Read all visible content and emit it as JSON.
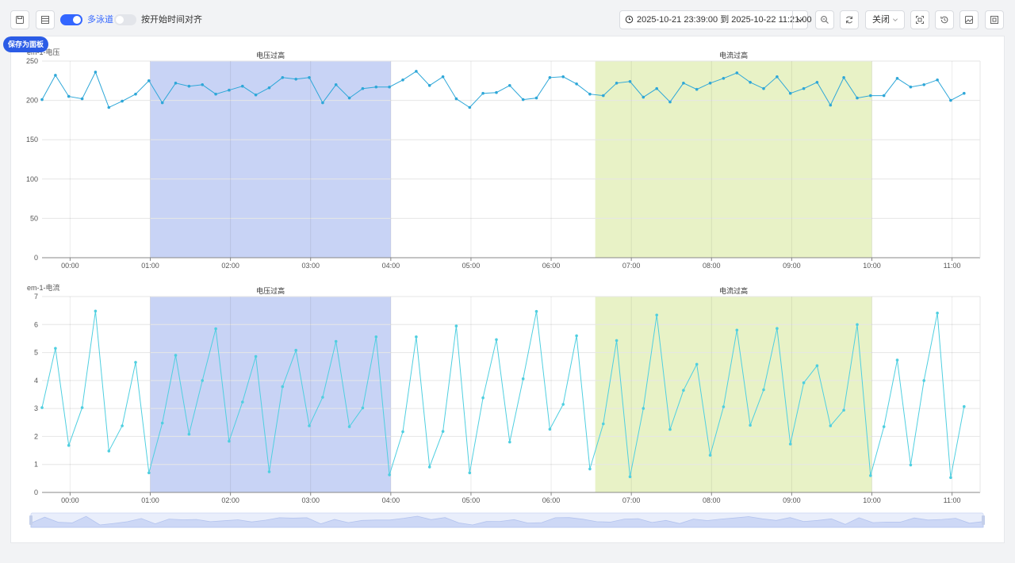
{
  "toolbar": {
    "save_tooltip": "保存为面板",
    "multi_lane_label": "多泳道",
    "multi_lane_on": true,
    "align_start_label": "按开始时间对齐",
    "align_start_on": false,
    "date_range": "2025-10-21 23:39:00 到 2025-10-22 11:21:00",
    "refresh_select": "关闭"
  },
  "colors": {
    "accent": "#3366ff",
    "line": "#2ea7d8",
    "line2": "#4fcfe0",
    "band_voltage": "#c8d3f5",
    "band_current": "#e8f2c6"
  },
  "chart_data": [
    {
      "type": "line",
      "title": "em-1-电压",
      "x_ticks": [
        "00:00",
        "01:00",
        "02:00",
        "03:00",
        "04:00",
        "05:00",
        "06:00",
        "07:00",
        "08:00",
        "09:00",
        "10:00",
        "11:00"
      ],
      "ylim": [
        0,
        250
      ],
      "y_ticks": [
        0,
        50,
        100,
        150,
        200,
        250
      ],
      "grid": true,
      "time_start": "23:39",
      "time_step_min": 10,
      "annotations": [
        {
          "label": "电压过高",
          "from": "01:00",
          "to": "04:00",
          "color": "#c8d3f5"
        },
        {
          "label": "电流过高",
          "from": "06:33",
          "to": "10:00",
          "color": "#e8f2c6"
        }
      ],
      "series": [
        {
          "values": [
            201,
            232,
            205,
            202,
            236,
            191,
            199,
            208,
            225,
            197,
            222,
            218,
            220,
            208,
            213,
            218,
            207,
            216,
            229,
            227,
            229,
            197,
            220,
            203,
            215,
            217,
            217,
            226,
            237,
            219,
            230,
            202,
            191,
            209,
            210,
            219,
            201,
            203,
            229,
            230,
            221,
            208,
            206,
            222,
            224,
            204,
            215,
            198,
            222,
            214,
            222,
            228,
            235,
            223,
            215,
            230,
            209,
            215,
            223,
            194,
            229,
            203,
            206,
            206,
            228,
            217,
            220,
            226,
            200,
            209
          ]
        }
      ]
    },
    {
      "type": "line",
      "title": "em-1-电流",
      "x_ticks": [
        "00:00",
        "01:00",
        "02:00",
        "03:00",
        "04:00",
        "05:00",
        "06:00",
        "07:00",
        "08:00",
        "09:00",
        "10:00",
        "11:00"
      ],
      "ylim": [
        0,
        7
      ],
      "y_ticks": [
        0,
        1,
        2,
        3,
        4,
        5,
        6,
        7
      ],
      "grid": true,
      "time_start": "23:39",
      "time_step_min": 10,
      "annotations": [
        {
          "label": "电压过高",
          "from": "01:00",
          "to": "04:00",
          "color": "#c8d3f5"
        },
        {
          "label": "电流过高",
          "from": "06:33",
          "to": "10:00",
          "color": "#e8f2c6"
        }
      ],
      "series": [
        {
          "values": [
            3.03,
            5.15,
            1.68,
            3.03,
            6.48,
            1.48,
            2.38,
            4.65,
            0.7,
            2.48,
            4.9,
            2.08,
            4.0,
            5.85,
            1.83,
            3.23,
            4.86,
            0.74,
            3.78,
            5.08,
            2.38,
            3.4,
            5.4,
            2.35,
            3.02,
            5.56,
            0.63,
            2.17,
            5.56,
            0.91,
            2.18,
            5.95,
            0.7,
            3.38,
            5.46,
            1.8,
            4.06,
            6.47,
            2.26,
            3.15,
            5.6,
            0.84,
            2.45,
            5.43,
            0.56,
            3.0,
            6.34,
            2.25,
            3.65,
            4.58,
            1.33,
            3.06,
            5.8,
            2.4,
            3.67,
            5.86,
            1.73,
            3.92,
            4.53,
            2.38,
            2.94,
            6.0,
            0.6,
            2.35,
            4.73,
            0.98,
            4.0,
            6.41,
            0.53,
            3.07
          ]
        }
      ]
    }
  ]
}
